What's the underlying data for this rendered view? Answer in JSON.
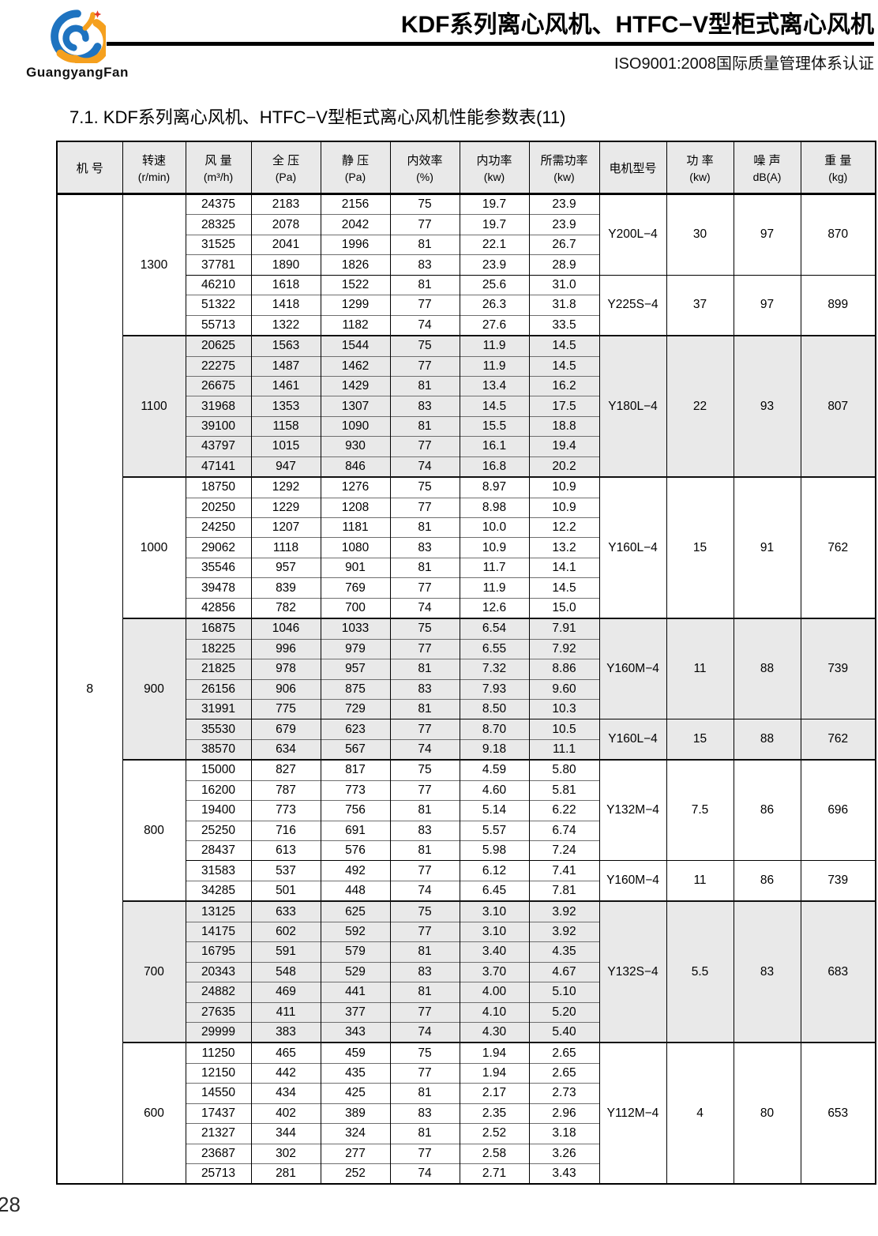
{
  "page": {
    "number": "28"
  },
  "header": {
    "logo_text": "GuangyangFan",
    "logo_colors": {
      "blue": "#1e73c0",
      "orange": "#f5a01e",
      "star_red": "#e53928"
    },
    "title": "KDF系列离心风机、HTFC−V型柜式离心风机",
    "subtitle": "ISO9001:2008国际质量管理体系认证"
  },
  "section_title": "7.1. KDF系列离心风机、HTFC−V型柜式离心风机性能参数表(11)",
  "table": {
    "machine_no": "8",
    "columns": [
      {
        "label": "机 号",
        "sub": ""
      },
      {
        "label": "转速",
        "sub": "(r/min)"
      },
      {
        "label": "风 量",
        "sub": "(m³/h)"
      },
      {
        "label": "全 压",
        "sub": "(Pa)"
      },
      {
        "label": "静 压",
        "sub": "(Pa)"
      },
      {
        "label": "内效率",
        "sub": "(%)"
      },
      {
        "label": "内功率",
        "sub": "(kw)"
      },
      {
        "label": "所需功率",
        "sub": "(kw)"
      },
      {
        "label": "电机型号",
        "sub": ""
      },
      {
        "label": "功 率",
        "sub": "(kw)"
      },
      {
        "label": "噪 声",
        "sub": "dB(A)"
      },
      {
        "label": "重 量",
        "sub": "(kg)"
      }
    ],
    "blocks": [
      {
        "speed": "1300",
        "shaded": false,
        "rows": [
          [
            "24375",
            "2183",
            "2156",
            "75",
            "19.7",
            "23.9"
          ],
          [
            "28325",
            "2078",
            "2042",
            "77",
            "19.7",
            "23.9"
          ],
          [
            "31525",
            "2041",
            "1996",
            "81",
            "22.1",
            "26.7"
          ],
          [
            "37781",
            "1890",
            "1826",
            "83",
            "23.9",
            "28.9"
          ],
          [
            "46210",
            "1618",
            "1522",
            "81",
            "25.6",
            "31.0"
          ],
          [
            "51322",
            "1418",
            "1299",
            "77",
            "26.3",
            "31.8"
          ],
          [
            "55713",
            "1322",
            "1182",
            "74",
            "27.6",
            "33.5"
          ]
        ],
        "motor_groups": [
          {
            "span": 4,
            "model": "Y200L−4",
            "power": "30",
            "noise": "97",
            "weight": "870"
          },
          {
            "span": 3,
            "model": "Y225S−4",
            "power": "37",
            "noise": "97",
            "weight": "899"
          }
        ]
      },
      {
        "speed": "1100",
        "shaded": true,
        "rows": [
          [
            "20625",
            "1563",
            "1544",
            "75",
            "11.9",
            "14.5"
          ],
          [
            "22275",
            "1487",
            "1462",
            "77",
            "11.9",
            "14.5"
          ],
          [
            "26675",
            "1461",
            "1429",
            "81",
            "13.4",
            "16.2"
          ],
          [
            "31968",
            "1353",
            "1307",
            "83",
            "14.5",
            "17.5"
          ],
          [
            "39100",
            "1158",
            "1090",
            "81",
            "15.5",
            "18.8"
          ],
          [
            "43797",
            "1015",
            "930",
            "77",
            "16.1",
            "19.4"
          ],
          [
            "47141",
            "947",
            "846",
            "74",
            "16.8",
            "20.2"
          ]
        ],
        "motor_groups": [
          {
            "span": 7,
            "model": "Y180L−4",
            "power": "22",
            "noise": "93",
            "weight": "807"
          }
        ]
      },
      {
        "speed": "1000",
        "shaded": false,
        "rows": [
          [
            "18750",
            "1292",
            "1276",
            "75",
            "8.97",
            "10.9"
          ],
          [
            "20250",
            "1229",
            "1208",
            "77",
            "8.98",
            "10.9"
          ],
          [
            "24250",
            "1207",
            "1181",
            "81",
            "10.0",
            "12.2"
          ],
          [
            "29062",
            "1118",
            "1080",
            "83",
            "10.9",
            "13.2"
          ],
          [
            "35546",
            "957",
            "901",
            "81",
            "11.7",
            "14.1"
          ],
          [
            "39478",
            "839",
            "769",
            "77",
            "11.9",
            "14.5"
          ],
          [
            "42856",
            "782",
            "700",
            "74",
            "12.6",
            "15.0"
          ]
        ],
        "motor_groups": [
          {
            "span": 7,
            "model": "Y160L−4",
            "power": "15",
            "noise": "91",
            "weight": "762"
          }
        ]
      },
      {
        "speed": "900",
        "shaded": true,
        "rows": [
          [
            "16875",
            "1046",
            "1033",
            "75",
            "6.54",
            "7.91"
          ],
          [
            "18225",
            "996",
            "979",
            "77",
            "6.55",
            "7.92"
          ],
          [
            "21825",
            "978",
            "957",
            "81",
            "7.32",
            "8.86"
          ],
          [
            "26156",
            "906",
            "875",
            "83",
            "7.93",
            "9.60"
          ],
          [
            "31991",
            "775",
            "729",
            "81",
            "8.50",
            "10.3"
          ],
          [
            "35530",
            "679",
            "623",
            "77",
            "8.70",
            "10.5"
          ],
          [
            "38570",
            "634",
            "567",
            "74",
            "9.18",
            "11.1"
          ]
        ],
        "motor_groups": [
          {
            "span": 5,
            "model": "Y160M−4",
            "power": "11",
            "noise": "88",
            "weight": "739"
          },
          {
            "span": 2,
            "model": "Y160L−4",
            "power": "15",
            "noise": "88",
            "weight": "762"
          }
        ]
      },
      {
        "speed": "800",
        "shaded": false,
        "rows": [
          [
            "15000",
            "827",
            "817",
            "75",
            "4.59",
            "5.80"
          ],
          [
            "16200",
            "787",
            "773",
            "77",
            "4.60",
            "5.81"
          ],
          [
            "19400",
            "773",
            "756",
            "81",
            "5.14",
            "6.22"
          ],
          [
            "25250",
            "716",
            "691",
            "83",
            "5.57",
            "6.74"
          ],
          [
            "28437",
            "613",
            "576",
            "81",
            "5.98",
            "7.24"
          ],
          [
            "31583",
            "537",
            "492",
            "77",
            "6.12",
            "7.41"
          ],
          [
            "34285",
            "501",
            "448",
            "74",
            "6.45",
            "7.81"
          ]
        ],
        "motor_groups": [
          {
            "span": 5,
            "model": "Y132M−4",
            "power": "7.5",
            "noise": "86",
            "weight": "696"
          },
          {
            "span": 2,
            "model": "Y160M−4",
            "power": "11",
            "noise": "86",
            "weight": "739"
          }
        ]
      },
      {
        "speed": "700",
        "shaded": true,
        "rows": [
          [
            "13125",
            "633",
            "625",
            "75",
            "3.10",
            "3.92"
          ],
          [
            "14175",
            "602",
            "592",
            "77",
            "3.10",
            "3.92"
          ],
          [
            "16795",
            "591",
            "579",
            "81",
            "3.40",
            "4.35"
          ],
          [
            "20343",
            "548",
            "529",
            "83",
            "3.70",
            "4.67"
          ],
          [
            "24882",
            "469",
            "441",
            "81",
            "4.00",
            "5.10"
          ],
          [
            "27635",
            "411",
            "377",
            "77",
            "4.10",
            "5.20"
          ],
          [
            "29999",
            "383",
            "343",
            "74",
            "4.30",
            "5.40"
          ]
        ],
        "motor_groups": [
          {
            "span": 7,
            "model": "Y132S−4",
            "power": "5.5",
            "noise": "83",
            "weight": "683"
          }
        ]
      },
      {
        "speed": "600",
        "shaded": false,
        "rows": [
          [
            "11250",
            "465",
            "459",
            "75",
            "1.94",
            "2.65"
          ],
          [
            "12150",
            "442",
            "435",
            "77",
            "1.94",
            "2.65"
          ],
          [
            "14550",
            "434",
            "425",
            "81",
            "2.17",
            "2.73"
          ],
          [
            "17437",
            "402",
            "389",
            "83",
            "2.35",
            "2.96"
          ],
          [
            "21327",
            "344",
            "324",
            "81",
            "2.52",
            "3.18"
          ],
          [
            "23687",
            "302",
            "277",
            "77",
            "2.58",
            "3.26"
          ],
          [
            "25713",
            "281",
            "252",
            "74",
            "2.71",
            "3.43"
          ]
        ],
        "motor_groups": [
          {
            "span": 7,
            "model": "Y112M−4",
            "power": "4",
            "noise": "80",
            "weight": "653"
          }
        ]
      }
    ]
  }
}
